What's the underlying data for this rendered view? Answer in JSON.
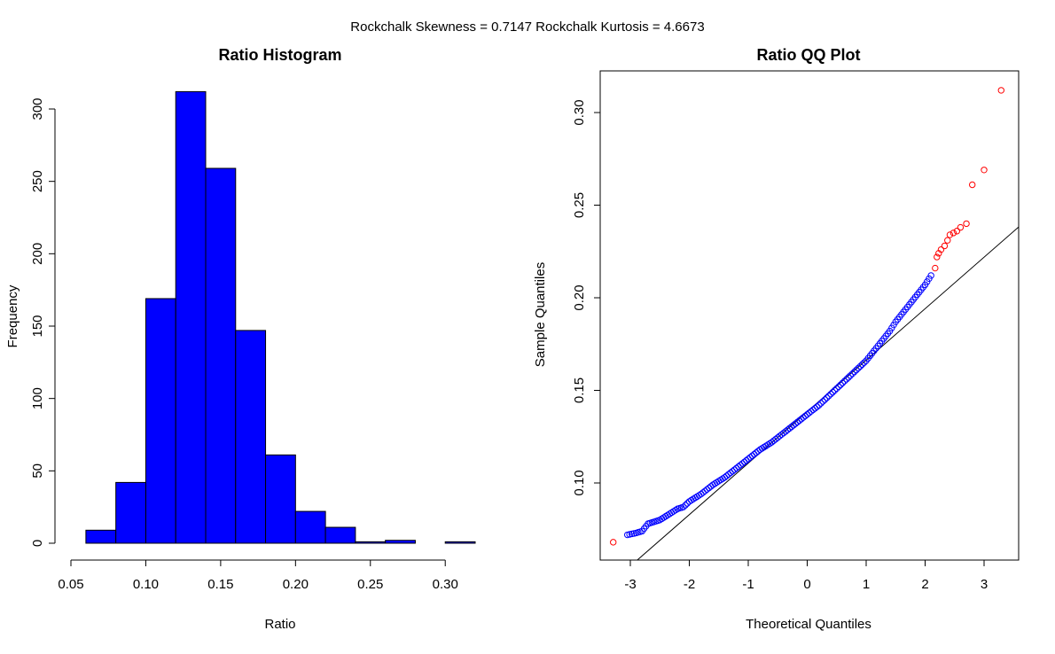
{
  "suptitle": "Rockchalk Skewness =  0.7147  Rockchalk Kurtosis =  4.6673",
  "colors": {
    "bar_fill": "#0000ff",
    "bar_edge": "#000000",
    "qq_normal": "#0000ff",
    "qq_extreme": "#ff0000",
    "reference_line": "#000000"
  },
  "chart_data": [
    {
      "type": "bar",
      "subtype": "histogram",
      "title": "Ratio Histogram",
      "xlabel": "Ratio",
      "ylabel": "Frequency",
      "bin_edges": [
        0.06,
        0.08,
        0.1,
        0.12,
        0.14,
        0.16,
        0.18,
        0.2,
        0.22,
        0.24,
        0.26,
        0.28,
        0.3,
        0.32
      ],
      "values": [
        9,
        42,
        169,
        312,
        259,
        147,
        61,
        22,
        11,
        1,
        2,
        0,
        1
      ],
      "xlim": [
        0.05,
        0.32
      ],
      "ylim": [
        0,
        320
      ],
      "xticks": [
        0.05,
        0.1,
        0.15,
        0.2,
        0.25,
        0.3
      ],
      "xtick_labels": [
        "0.05",
        "0.10",
        "0.15",
        "0.20",
        "0.25",
        "0.30"
      ],
      "yticks": [
        0,
        50,
        100,
        150,
        200,
        250,
        300
      ],
      "ytick_labels": [
        "0",
        "50",
        "100",
        "150",
        "200",
        "250",
        "300"
      ],
      "grid": false
    },
    {
      "type": "scatter",
      "subtype": "qq",
      "title": "Ratio QQ Plot",
      "xlabel": "Theoretical Quantiles",
      "ylabel": "Sample Quantiles",
      "xlim": [
        -3.5,
        3.6
      ],
      "ylim": [
        0.062,
        0.32
      ],
      "xticks": [
        -3,
        -2,
        -1,
        0,
        1,
        2,
        3
      ],
      "xtick_labels": [
        "-3",
        "-2",
        "-1",
        "0",
        "1",
        "2",
        "3"
      ],
      "yticks": [
        0.1,
        0.15,
        0.2,
        0.25,
        0.3
      ],
      "ytick_labels": [
        "0.10",
        "0.15",
        "0.20",
        "0.25",
        "0.30"
      ],
      "grid": false,
      "reference_line": {
        "intercept": 0.1385,
        "slope": 0.0278
      },
      "outlier_points": [
        [
          -3.29,
          0.068
        ],
        [
          2.17,
          0.216
        ],
        [
          2.2,
          0.222
        ],
        [
          2.23,
          0.224
        ],
        [
          2.27,
          0.226
        ],
        [
          2.33,
          0.228
        ],
        [
          2.38,
          0.231
        ],
        [
          2.42,
          0.234
        ],
        [
          2.48,
          0.235
        ],
        [
          2.54,
          0.236
        ],
        [
          2.6,
          0.238
        ],
        [
          2.7,
          0.24
        ],
        [
          2.8,
          0.261
        ],
        [
          3.0,
          0.269
        ],
        [
          3.29,
          0.312
        ]
      ],
      "curve_points": [
        [
          -3.05,
          0.072
        ],
        [
          -2.9,
          0.073
        ],
        [
          -2.8,
          0.074
        ],
        [
          -2.7,
          0.078
        ],
        [
          -2.6,
          0.079
        ],
        [
          -2.5,
          0.08
        ],
        [
          -2.4,
          0.082
        ],
        [
          -2.3,
          0.084
        ],
        [
          -2.2,
          0.086
        ],
        [
          -2.1,
          0.087
        ],
        [
          -2.0,
          0.09
        ],
        [
          -1.8,
          0.094
        ],
        [
          -1.6,
          0.099
        ],
        [
          -1.4,
          0.103
        ],
        [
          -1.2,
          0.108
        ],
        [
          -1.0,
          0.113
        ],
        [
          -0.8,
          0.118
        ],
        [
          -0.6,
          0.122
        ],
        [
          -0.4,
          0.127
        ],
        [
          -0.2,
          0.132
        ],
        [
          0.0,
          0.137
        ],
        [
          0.2,
          0.142
        ],
        [
          0.4,
          0.148
        ],
        [
          0.6,
          0.154
        ],
        [
          0.8,
          0.16
        ],
        [
          1.0,
          0.166
        ],
        [
          1.1,
          0.17
        ],
        [
          1.2,
          0.174
        ],
        [
          1.3,
          0.178
        ],
        [
          1.4,
          0.182
        ],
        [
          1.5,
          0.187
        ],
        [
          1.6,
          0.191
        ],
        [
          1.7,
          0.195
        ],
        [
          1.8,
          0.199
        ],
        [
          1.9,
          0.203
        ],
        [
          2.0,
          0.207
        ],
        [
          2.1,
          0.212
        ]
      ]
    }
  ]
}
